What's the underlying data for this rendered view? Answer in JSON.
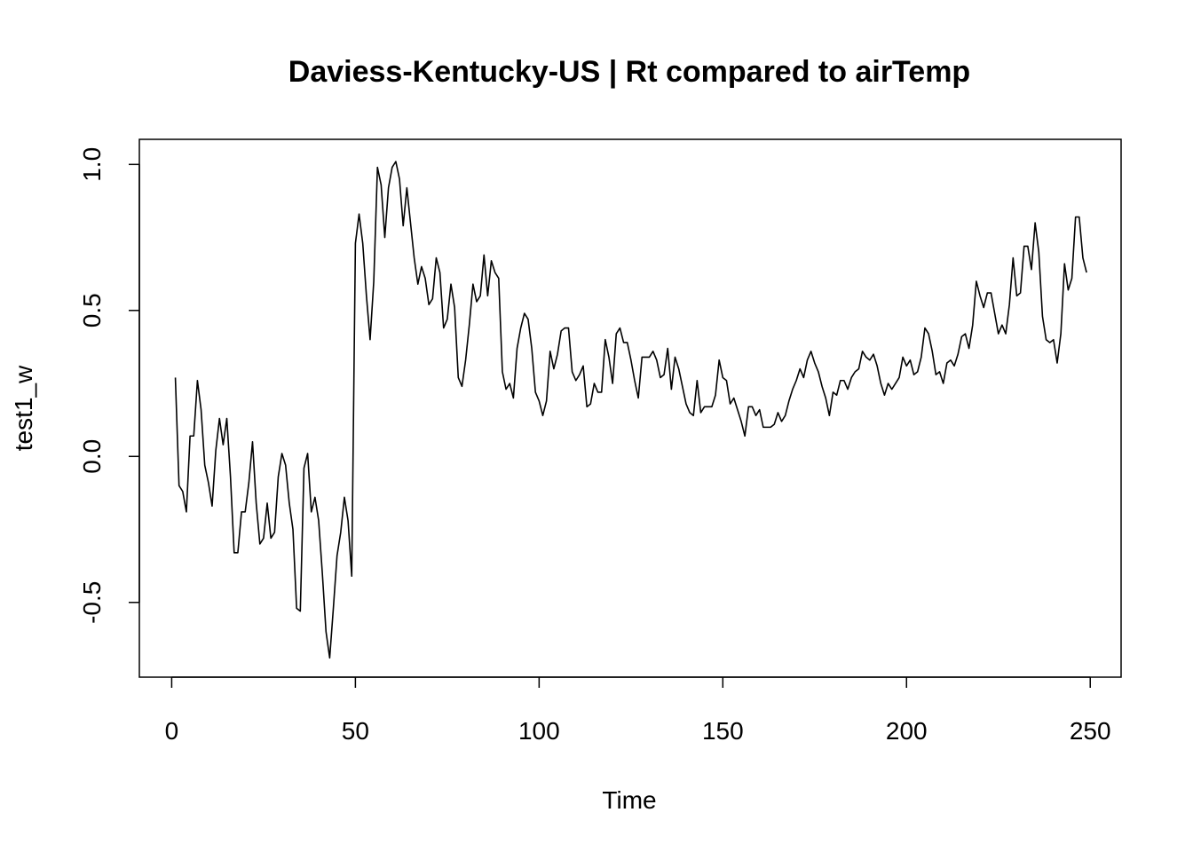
{
  "chart_data": {
    "type": "line",
    "title": "Daviess-Kentucky-US | Rt compared to airTemp",
    "xlabel": "Time",
    "ylabel": "test1_w",
    "xlim": [
      -8.8,
      258.4
    ],
    "ylim": [
      -0.756,
      1.086
    ],
    "x_ticks": [
      0,
      50,
      100,
      150,
      200,
      250
    ],
    "x_tick_labels": [
      "0",
      "50",
      "100",
      "150",
      "200",
      "250"
    ],
    "y_ticks": [
      -0.5,
      0.0,
      0.5,
      1.0
    ],
    "y_tick_labels": [
      "-0.5",
      "0.0",
      "0.5",
      "1.0"
    ],
    "grid": false,
    "legend": "none",
    "line_color": "#000000",
    "series": [
      {
        "x_start": 1,
        "x_step": 1,
        "values": [
          0.27,
          -0.1,
          -0.12,
          -0.19,
          0.07,
          0.07,
          0.26,
          0.16,
          -0.03,
          -0.09,
          -0.17,
          0.02,
          0.13,
          0.04,
          0.13,
          -0.07,
          -0.33,
          -0.33,
          -0.19,
          -0.19,
          -0.09,
          0.05,
          -0.16,
          -0.3,
          -0.28,
          -0.16,
          -0.28,
          -0.26,
          -0.07,
          0.01,
          -0.03,
          -0.16,
          -0.25,
          -0.52,
          -0.53,
          -0.04,
          0.01,
          -0.19,
          -0.14,
          -0.22,
          -0.4,
          -0.6,
          -0.69,
          -0.52,
          -0.34,
          -0.26,
          -0.14,
          -0.22,
          -0.41,
          0.73,
          0.83,
          0.73,
          0.55,
          0.4,
          0.6,
          0.99,
          0.93,
          0.75,
          0.92,
          0.99,
          1.01,
          0.95,
          0.79,
          0.92,
          0.8,
          0.68,
          0.59,
          0.65,
          0.61,
          0.52,
          0.54,
          0.68,
          0.63,
          0.44,
          0.47,
          0.59,
          0.51,
          0.27,
          0.24,
          0.33,
          0.45,
          0.59,
          0.53,
          0.55,
          0.69,
          0.55,
          0.67,
          0.63,
          0.61,
          0.29,
          0.23,
          0.25,
          0.2,
          0.37,
          0.44,
          0.49,
          0.47,
          0.37,
          0.22,
          0.19,
          0.14,
          0.19,
          0.36,
          0.3,
          0.35,
          0.43,
          0.44,
          0.44,
          0.29,
          0.26,
          0.28,
          0.31,
          0.17,
          0.18,
          0.25,
          0.22,
          0.22,
          0.4,
          0.34,
          0.25,
          0.42,
          0.44,
          0.39,
          0.39,
          0.33,
          0.26,
          0.2,
          0.34,
          0.34,
          0.34,
          0.36,
          0.33,
          0.27,
          0.28,
          0.37,
          0.23,
          0.34,
          0.3,
          0.24,
          0.18,
          0.15,
          0.14,
          0.26,
          0.15,
          0.17,
          0.17,
          0.17,
          0.21,
          0.33,
          0.27,
          0.26,
          0.18,
          0.2,
          0.16,
          0.12,
          0.07,
          0.17,
          0.17,
          0.14,
          0.16,
          0.1,
          0.1,
          0.1,
          0.11,
          0.15,
          0.12,
          0.14,
          0.19,
          0.23,
          0.26,
          0.3,
          0.27,
          0.33,
          0.36,
          0.32,
          0.29,
          0.24,
          0.2,
          0.14,
          0.22,
          0.21,
          0.26,
          0.26,
          0.23,
          0.27,
          0.29,
          0.3,
          0.36,
          0.34,
          0.33,
          0.35,
          0.31,
          0.25,
          0.21,
          0.25,
          0.23,
          0.25,
          0.27,
          0.34,
          0.31,
          0.33,
          0.28,
          0.29,
          0.34,
          0.44,
          0.42,
          0.36,
          0.28,
          0.29,
          0.25,
          0.32,
          0.33,
          0.31,
          0.35,
          0.41,
          0.42,
          0.37,
          0.45,
          0.6,
          0.55,
          0.51,
          0.56,
          0.56,
          0.49,
          0.42,
          0.45,
          0.42,
          0.52,
          0.68,
          0.55,
          0.56,
          0.72,
          0.72,
          0.64,
          0.8,
          0.7,
          0.48,
          0.4,
          0.39,
          0.4,
          0.32,
          0.42,
          0.66,
          0.57,
          0.61,
          0.82,
          0.82,
          0.68,
          0.63
        ]
      }
    ]
  }
}
